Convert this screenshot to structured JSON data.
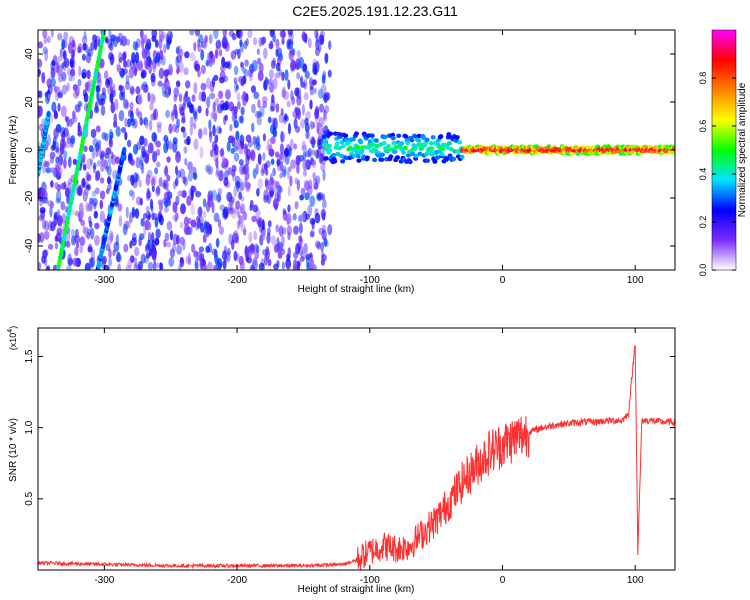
{
  "title": "C2E5.2025.191.12.23.G11",
  "chart_data": [
    {
      "type": "heatmap",
      "xlabel": "Height of straight line (km)",
      "ylabel": "Frequency (Hz)",
      "xlim": [
        -350,
        130
      ],
      "ylim": [
        -50,
        50
      ],
      "xticks": [
        -300,
        -200,
        -100,
        0,
        100
      ],
      "yticks": [
        -40,
        -20,
        0,
        20,
        40
      ],
      "colorbar": {
        "label": "Normalized spectral amplitude",
        "range": [
          0,
          1
        ],
        "ticks": [
          0.0,
          0.2,
          0.4,
          0.6,
          0.8
        ],
        "tick_labels": [
          "0.0",
          "0.2",
          "0.4",
          "0.6",
          "0.8"
        ],
        "colormap": [
          "#ffffff",
          "#7b2cff",
          "#0000ff",
          "#00e5ff",
          "#00ff00",
          "#ffff00",
          "#ff8000",
          "#ff0000",
          "#ff00ff"
        ]
      },
      "features": [
        {
          "kind": "diffuse-noise",
          "x_range": [
            -350,
            -130
          ],
          "y_range": [
            -50,
            50
          ],
          "level": 0.25
        },
        {
          "kind": "diagonal-streak",
          "points": [
            [
              -335,
              -50
            ],
            [
              -300,
              50
            ]
          ],
          "level": 0.45
        },
        {
          "kind": "diagonal-streak",
          "points": [
            [
              -350,
              -10
            ],
            [
              -342,
              15
            ]
          ],
          "level": 0.35
        },
        {
          "kind": "diagonal-streak",
          "points": [
            [
              -305,
              -50
            ],
            [
              -285,
              0
            ]
          ],
          "level": 0.3
        },
        {
          "kind": "signal-band",
          "x_range": [
            -135,
            -30
          ],
          "y_center": 1,
          "y_halfwidth": 6,
          "level": 0.45
        },
        {
          "kind": "signal-band",
          "x_range": [
            -30,
            130
          ],
          "y_center": 0,
          "y_halfwidth": 1.5,
          "level": 0.95
        }
      ]
    },
    {
      "type": "line",
      "xlabel": "Height of straight line (km)",
      "ylabel": "SNR (10 * v/v)",
      "y_multiplier_label": "(x10",
      "y_multiplier_exp": "4",
      "xlim": [
        -350,
        130
      ],
      "ylim": [
        0,
        1.7
      ],
      "xticks": [
        -300,
        -200,
        -100,
        0,
        100
      ],
      "yticks": [
        0.5,
        1.0,
        1.5
      ],
      "ytick_labels": [
        "0.5",
        "1.0",
        "1.5"
      ],
      "color": "#ff3030",
      "series": [
        {
          "x": [
            -350,
            -300,
            -250,
            -200,
            -150,
            -120,
            -110,
            -100,
            -90,
            -80,
            -70,
            -60,
            -50,
            -40,
            -30,
            -20,
            -10,
            0,
            10,
            20,
            30,
            40,
            50,
            60,
            70,
            80,
            90,
            95,
            100,
            102,
            105,
            110,
            120,
            130
          ],
          "y": [
            0.05,
            0.04,
            0.03,
            0.03,
            0.03,
            0.04,
            0.07,
            0.13,
            0.17,
            0.15,
            0.17,
            0.26,
            0.35,
            0.48,
            0.62,
            0.73,
            0.83,
            0.88,
            0.93,
            0.97,
            1.0,
            1.02,
            1.03,
            1.04,
            1.04,
            1.05,
            1.05,
            1.1,
            1.6,
            0.12,
            1.05,
            1.05,
            1.04,
            1.04
          ]
        }
      ]
    }
  ]
}
